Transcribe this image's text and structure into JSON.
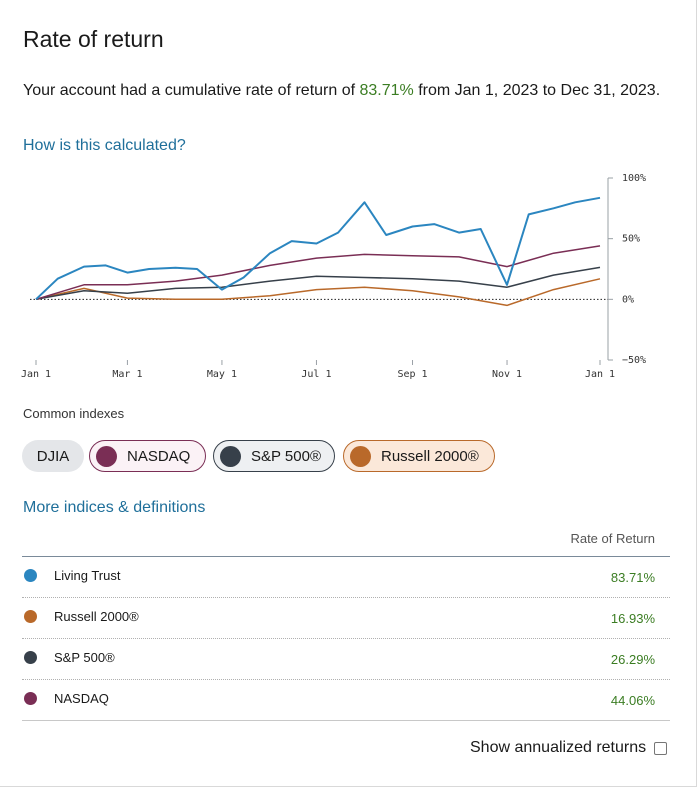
{
  "title": "Rate of return",
  "summary": {
    "prefix": "Your account had a cumulative rate of return of ",
    "rate": "83.71%",
    "suffix": " from Jan 1, 2023 to Dec 31, 2023."
  },
  "how_link": "How is this calculated?",
  "colors": {
    "living_trust": "#2b86c0",
    "nasdaq": "#7a2e55",
    "sp500": "#37404a",
    "russell": "#b9692a",
    "positive": "#3b7d23",
    "link": "#1f6f9a"
  },
  "chart_data": {
    "type": "line",
    "x_ticks": [
      "Jan 1",
      "Mar 1",
      "May 1",
      "Jul 1",
      "Sep 1",
      "Nov 1",
      "Jan 1"
    ],
    "y_ticks": [
      "100%",
      "50%",
      "0%",
      "−50%"
    ],
    "ylim": [
      -50,
      100
    ],
    "y_axis_side": "right",
    "baseline": 0,
    "x_range": [
      "2023-01-01",
      "2023-12-31"
    ],
    "series": [
      {
        "name": "Living Trust",
        "color": "#2b86c0",
        "x": [
          "2023-01-01",
          "2023-01-15",
          "2023-02-01",
          "2023-02-15",
          "2023-03-01",
          "2023-03-15",
          "2023-04-01",
          "2023-04-15",
          "2023-05-01",
          "2023-05-15",
          "2023-06-01",
          "2023-06-15",
          "2023-07-01",
          "2023-07-15",
          "2023-08-01",
          "2023-08-15",
          "2023-09-01",
          "2023-09-15",
          "2023-10-01",
          "2023-10-15",
          "2023-11-01",
          "2023-11-15",
          "2023-12-01",
          "2023-12-15",
          "2023-12-31"
        ],
        "values": [
          0,
          17,
          27,
          28,
          22,
          25,
          26,
          25,
          8,
          18,
          38,
          48,
          46,
          55,
          80,
          53,
          60,
          62,
          55,
          58,
          12,
          70,
          75,
          80,
          83.71
        ]
      },
      {
        "name": "NASDAQ",
        "color": "#7a2e55",
        "x": [
          "2023-01-01",
          "2023-02-01",
          "2023-03-01",
          "2023-04-01",
          "2023-05-01",
          "2023-06-01",
          "2023-07-01",
          "2023-08-01",
          "2023-09-01",
          "2023-10-01",
          "2023-11-01",
          "2023-12-01",
          "2023-12-31"
        ],
        "values": [
          0,
          12,
          12,
          15,
          20,
          28,
          34,
          37,
          36,
          35,
          27,
          38,
          44.06
        ]
      },
      {
        "name": "S&P 500®",
        "color": "#37404a",
        "x": [
          "2023-01-01",
          "2023-02-01",
          "2023-03-01",
          "2023-04-01",
          "2023-05-01",
          "2023-06-01",
          "2023-07-01",
          "2023-08-01",
          "2023-09-01",
          "2023-10-01",
          "2023-11-01",
          "2023-12-01",
          "2023-12-31"
        ],
        "values": [
          0,
          7,
          5,
          9,
          10,
          15,
          19,
          18,
          17,
          15,
          10,
          20,
          26.29
        ]
      },
      {
        "name": "Russell 2000®",
        "color": "#b9692a",
        "x": [
          "2023-01-01",
          "2023-02-01",
          "2023-03-01",
          "2023-04-01",
          "2023-05-01",
          "2023-06-01",
          "2023-07-01",
          "2023-08-01",
          "2023-09-01",
          "2023-10-01",
          "2023-11-01",
          "2023-12-01",
          "2023-12-31"
        ],
        "values": [
          0,
          9,
          1,
          0,
          0,
          3,
          8,
          10,
          7,
          2,
          -5,
          8,
          16.93
        ]
      }
    ]
  },
  "common_indexes": {
    "label": "Common indexes",
    "chips": [
      {
        "label": "DJIA",
        "color": ""
      },
      {
        "label": "NASDAQ",
        "color": "#7a2e55"
      },
      {
        "label": "S&P 500®",
        "color": "#37404a"
      },
      {
        "label": "Russell 2000®",
        "color": "#b9692a"
      }
    ]
  },
  "more_link": "More indices & definitions",
  "table": {
    "header": "Rate of Return",
    "rows": [
      {
        "name": "Living Trust",
        "value": "83.71%",
        "color": "#2b86c0"
      },
      {
        "name": "Russell 2000®",
        "value": "16.93%",
        "color": "#b9692a"
      },
      {
        "name": "S&P 500®",
        "value": "26.29%",
        "color": "#37404a"
      },
      {
        "name": "NASDAQ",
        "value": "44.06%",
        "color": "#7a2e55"
      }
    ]
  },
  "annualized": {
    "label": "Show annualized returns",
    "checked": false
  }
}
